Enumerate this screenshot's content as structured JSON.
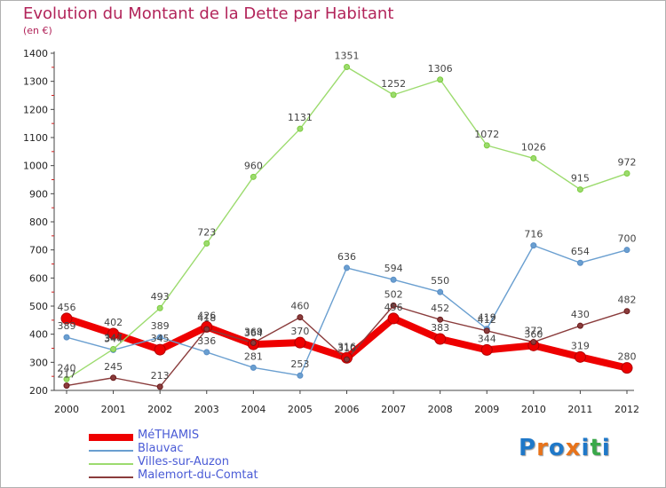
{
  "title": "Evolution du Montant de la Dette par Habitant",
  "subtitle": "(en €)",
  "logo": {
    "letters": [
      "P",
      "r",
      "o",
      "x",
      "i",
      "t",
      "i"
    ],
    "colors": [
      "#1f78c8",
      "#e8731a",
      "#1f78c8",
      "#e8731a",
      "#1f78c8",
      "#3aa84a",
      "#1f78c8"
    ]
  },
  "chart_data": {
    "type": "line",
    "title": "Evolution du Montant de la Dette par Habitant",
    "subtitle": "(en €)",
    "xlabel": "",
    "ylabel": "",
    "ylim": [
      200,
      1400
    ],
    "ytick_step": 100,
    "grid": false,
    "legend_position": "bottom-left",
    "x": [
      "2000",
      "2001",
      "2002",
      "2003",
      "2004",
      "2005",
      "2006",
      "2007",
      "2008",
      "2009",
      "2010",
      "2011",
      "2012"
    ],
    "series": [
      {
        "name": "MéTHAMIS",
        "color": "#ee0000",
        "marker": "#b00000",
        "width": 8,
        "values": [
          456,
          402,
          345,
          426,
          364,
          370,
          316,
          456,
          383,
          344,
          360,
          319,
          280
        ]
      },
      {
        "name": "Blauvac",
        "color": "#6a9fd0",
        "marker": "#5a8ec6",
        "width": 1.4,
        "values": [
          389,
          344,
          389,
          336,
          281,
          253,
          636,
          594,
          550,
          419,
          716,
          654,
          700
        ]
      },
      {
        "name": "Villes-sur-Auzon",
        "color": "#9cdb6e",
        "marker": "#7ccc3e",
        "width": 1.4,
        "values": [
          240,
          347,
          493,
          723,
          960,
          1131,
          1351,
          1252,
          1306,
          1072,
          1026,
          915,
          972
        ]
      },
      {
        "name": "Malemort-du-Comtat",
        "color": "#8a3c3c",
        "marker": "#6a1a1a",
        "width": 1.4,
        "values": [
          217,
          245,
          213,
          418,
          369,
          460,
          310,
          502,
          452,
          412,
          372,
          430,
          482
        ]
      }
    ]
  }
}
